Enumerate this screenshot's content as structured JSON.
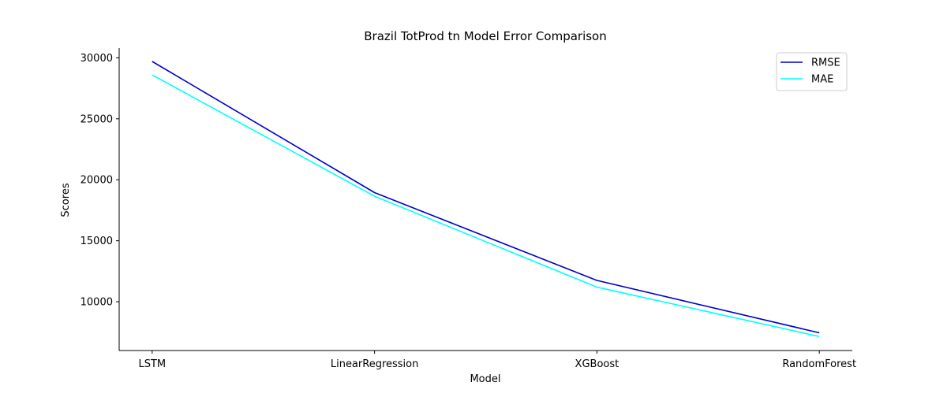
{
  "chart_data": {
    "type": "line",
    "title": "Brazil TotProd tn Model Error Comparison",
    "xlabel": "Model",
    "ylabel": "Scores",
    "categories": [
      "LSTM",
      "LinearRegression",
      "XGBoost",
      "RandomForest"
    ],
    "series": [
      {
        "name": "RMSE",
        "values": [
          29700,
          18950,
          11750,
          7450
        ],
        "color": "#0000cc"
      },
      {
        "name": "MAE",
        "values": [
          28600,
          18650,
          11200,
          7150
        ],
        "color": "#00ffff"
      }
    ],
    "ylim": [
      6000,
      30800
    ],
    "yticks": [
      10000,
      15000,
      20000,
      25000,
      30000
    ],
    "grid": false,
    "legend_position": "top-right"
  }
}
